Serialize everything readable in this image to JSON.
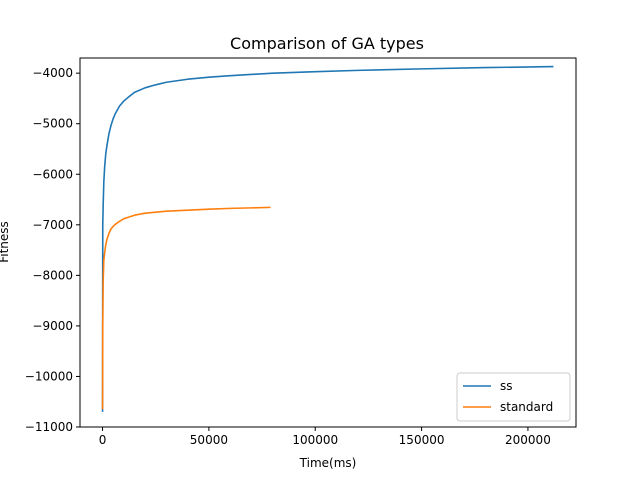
{
  "chart_data": {
    "type": "line",
    "title": "Comparison of GA types",
    "xlabel": "Time(ms)",
    "ylabel": "Fitness",
    "xlim": [
      -10600,
      222600
    ],
    "ylim": [
      -11000,
      -3700
    ],
    "xticks": [
      0,
      50000,
      100000,
      150000,
      200000
    ],
    "xtick_labels": [
      "0",
      "50000",
      "100000",
      "150000",
      "200000"
    ],
    "yticks": [
      -11000,
      -10000,
      -9000,
      -8000,
      -7000,
      -6000,
      -5000,
      -4000
    ],
    "ytick_labels": [
      "−11000",
      "−10000",
      "−9000",
      "−8000",
      "−7000",
      "−6000",
      "−5000",
      "−4000"
    ],
    "grid": false,
    "legend_position": "lower-right",
    "series": [
      {
        "name": "ss",
        "color": "#1f77b4",
        "x": [
          0,
          100,
          300,
          600,
          1000,
          1500,
          2000,
          3000,
          4000,
          5000,
          6000,
          8000,
          10000,
          12000,
          15000,
          20000,
          25000,
          30000,
          40000,
          50000,
          60000,
          80000,
          100000,
          120000,
          150000,
          180000,
          212000
        ],
        "y": [
          -10700,
          -7000,
          -6600,
          -6150,
          -5850,
          -5600,
          -5450,
          -5200,
          -5030,
          -4900,
          -4800,
          -4650,
          -4550,
          -4480,
          -4380,
          -4290,
          -4230,
          -4180,
          -4120,
          -4080,
          -4050,
          -4000,
          -3970,
          -3945,
          -3915,
          -3890,
          -3870
        ]
      },
      {
        "name": "standard",
        "color": "#ff7f0e",
        "x": [
          0,
          100,
          300,
          600,
          1000,
          1500,
          2000,
          3000,
          4000,
          5000,
          6000,
          8000,
          10000,
          15000,
          20000,
          30000,
          40000,
          50000,
          60000,
          70000,
          79000
        ],
        "y": [
          -10650,
          -9000,
          -8100,
          -7700,
          -7550,
          -7400,
          -7300,
          -7170,
          -7080,
          -7030,
          -6990,
          -6930,
          -6880,
          -6810,
          -6770,
          -6730,
          -6710,
          -6690,
          -6675,
          -6665,
          -6655
        ]
      }
    ]
  }
}
